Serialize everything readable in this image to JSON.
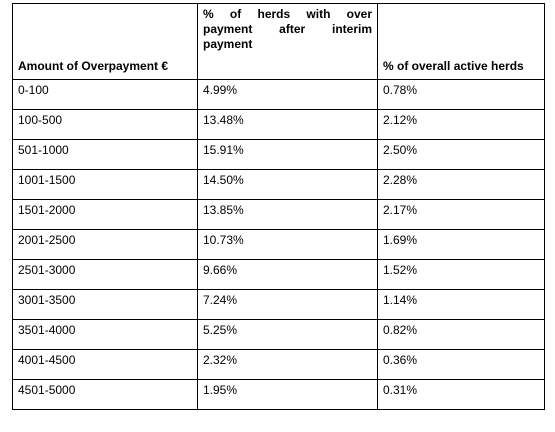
{
  "table": {
    "headers": [
      "Amount of Overpayment €",
      "% of herds with over payment after interim payment",
      "% of overall active herds"
    ],
    "rows": [
      [
        "0-100",
        "4.99%",
        "0.78%"
      ],
      [
        "100-500",
        "13.48%",
        "2.12%"
      ],
      [
        "501-1000",
        "15.91%",
        "2.50%"
      ],
      [
        "1001-1500",
        "14.50%",
        "2.28%"
      ],
      [
        "1501-2000",
        "13.85%",
        "2.17%"
      ],
      [
        "2001-2500",
        "10.73%",
        "1.69%"
      ],
      [
        "2501-3000",
        "9.66%",
        "1.52%"
      ],
      [
        "3001-3500",
        "7.24%",
        "1.14%"
      ],
      [
        "3501-4000",
        "5.25%",
        "0.82%"
      ],
      [
        "4001-4500",
        "2.32%",
        "0.36%"
      ],
      [
        "4501-5000",
        "1.95%",
        "0.31%"
      ]
    ]
  }
}
